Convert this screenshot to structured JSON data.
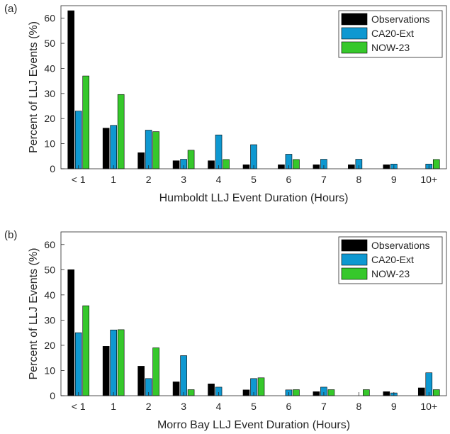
{
  "chart_data": [
    {
      "type": "bar",
      "panel_label": "(a)",
      "categories": [
        "< 1",
        "1",
        "2",
        "3",
        "4",
        "5",
        "6",
        "7",
        "8",
        "9",
        "10+"
      ],
      "series": [
        {
          "name": "Observations",
          "color": "#000000",
          "values": [
            63,
            16.2,
            6.4,
            3.2,
            3.2,
            1.6,
            1.6,
            1.6,
            1.6,
            1.6,
            0
          ]
        },
        {
          "name": "CA20-Ext",
          "color": "#0e98d1",
          "values": [
            23,
            17.3,
            15.4,
            3.8,
            13.5,
            9.6,
            5.8,
            3.8,
            3.8,
            1.9,
            1.9
          ]
        },
        {
          "name": "NOW-23",
          "color": "#36c82b",
          "values": [
            37,
            29.6,
            14.8,
            7.4,
            3.7,
            0,
            3.7,
            0,
            0,
            0,
            3.7
          ]
        }
      ],
      "xlabel": "Humboldt LLJ Event Duration (Hours)",
      "ylabel": "Percent of LLJ Events (%)",
      "ylim": [
        0,
        65
      ],
      "yticks": [
        0,
        10,
        20,
        30,
        40,
        50,
        60
      ],
      "legend": "top-right",
      "grid": false
    },
    {
      "type": "bar",
      "panel_label": "(b)",
      "categories": [
        "< 1",
        "1",
        "2",
        "3",
        "4",
        "5",
        "6",
        "7",
        "8",
        "9",
        "10+"
      ],
      "series": [
        {
          "name": "Observations",
          "color": "#000000",
          "values": [
            50,
            19.6,
            11.7,
            5.5,
            4.7,
            2.3,
            0,
            1.6,
            0,
            1.6,
            3.1
          ]
        },
        {
          "name": "CA20-Ext",
          "color": "#0e98d1",
          "values": [
            25,
            26.1,
            6.8,
            15.9,
            3.4,
            6.8,
            2.3,
            3.4,
            0,
            1.1,
            9.1
          ]
        },
        {
          "name": "NOW-23",
          "color": "#36c82b",
          "values": [
            35.7,
            26.2,
            19,
            2.4,
            0,
            7.1,
            2.4,
            2.4,
            2.4,
            0,
            2.4
          ]
        }
      ],
      "xlabel": "Morro Bay LLJ Event Duration (Hours)",
      "ylabel": "Percent of LLJ Events (%)",
      "ylim": [
        0,
        65
      ],
      "yticks": [
        0,
        10,
        20,
        30,
        40,
        50,
        60
      ],
      "legend": "top-right",
      "grid": false
    }
  ]
}
